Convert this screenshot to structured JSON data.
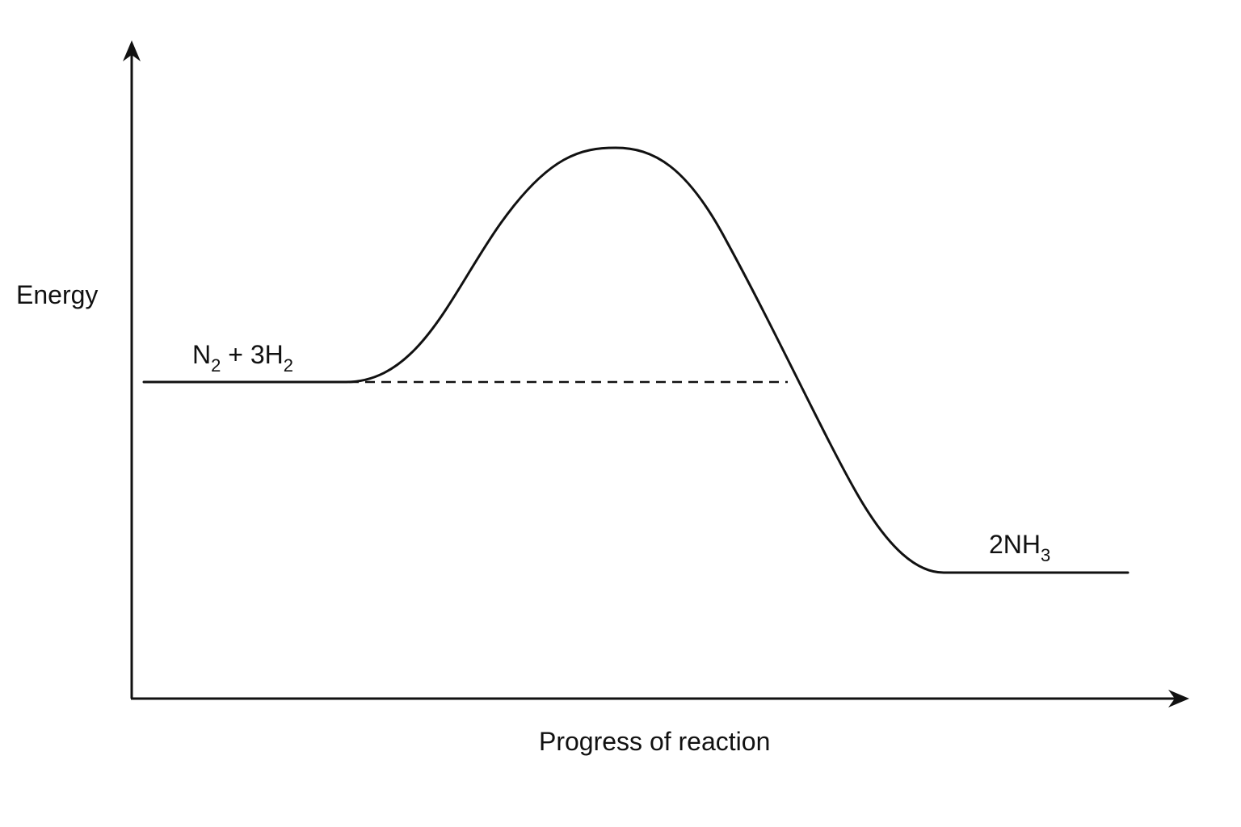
{
  "diagram": {
    "y_axis_label": "Energy",
    "x_axis_label": "Progress of reaction",
    "reactants": {
      "main": "N",
      "sub1": "2",
      "mid": " + 3H",
      "sub2": "2"
    },
    "products": {
      "main": "2NH",
      "sub": "3"
    },
    "colors": {
      "ink": "#111111",
      "background": "#ffffff"
    }
  }
}
